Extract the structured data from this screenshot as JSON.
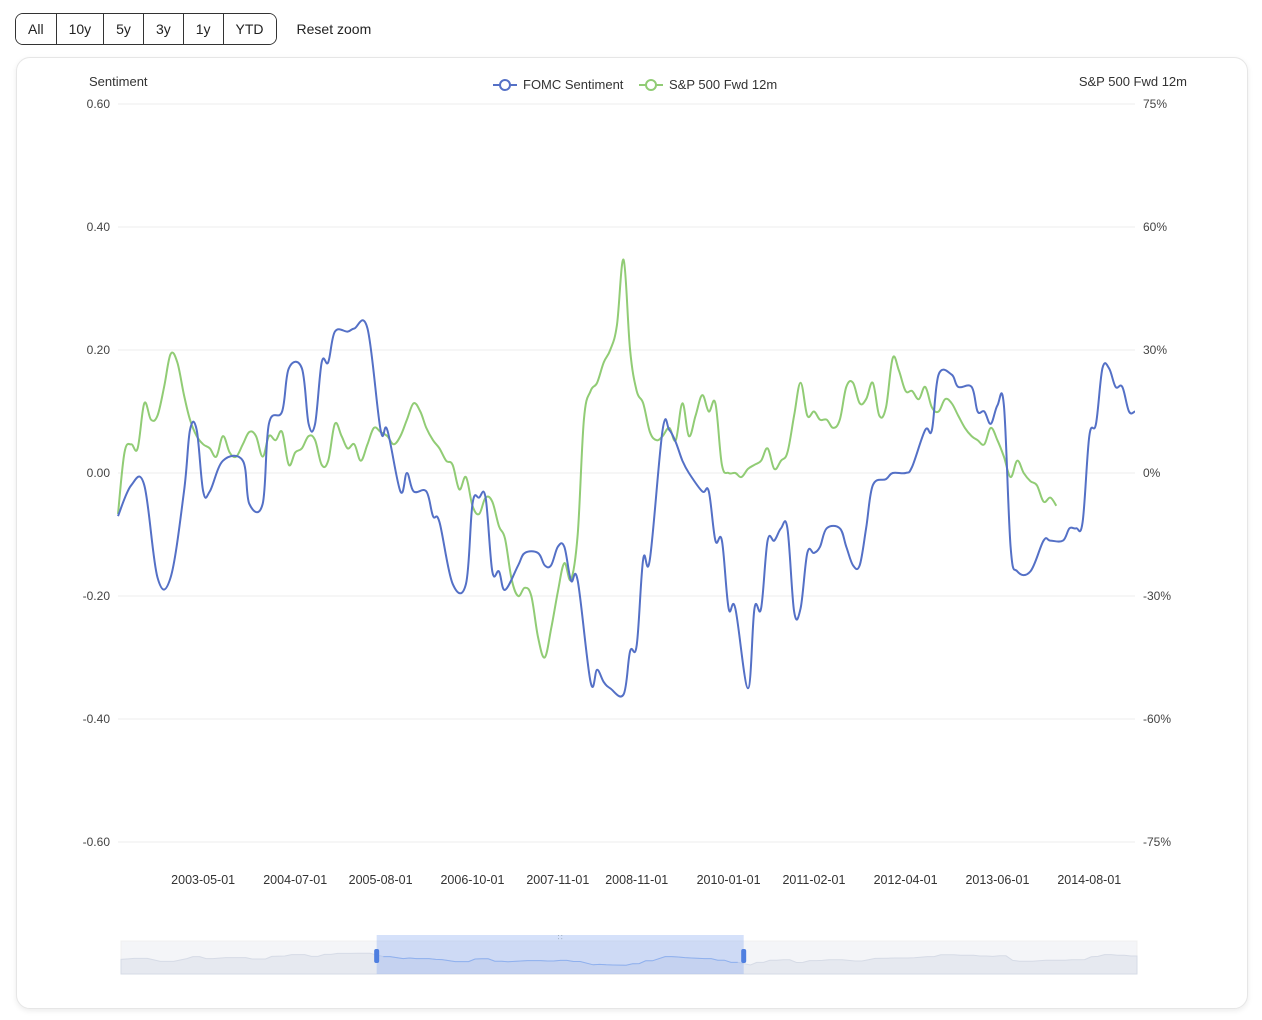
{
  "toolbar": {
    "ranges": [
      "All",
      "10y",
      "5y",
      "3y",
      "1y",
      "YTD"
    ],
    "reset_label": "Reset zoom"
  },
  "chart_data": {
    "type": "line",
    "left_axis": {
      "label": "Sentiment",
      "ticks": [
        "0.60",
        "0.40",
        "0.20",
        "0.00",
        "-0.20",
        "-0.40",
        "-0.60"
      ],
      "range": [
        -0.6,
        0.6
      ]
    },
    "right_axis": {
      "label": "S&P 500 Fwd 12m",
      "ticks": [
        "75%",
        "60%",
        "30%",
        "0%",
        "-30%",
        "-60%",
        "-75%"
      ]
    },
    "x_labels": [
      "2003-05-01",
      "2004-07-01",
      "2005-08-01",
      "2006-10-01",
      "2007-11-01",
      "2008-11-01",
      "2010-01-01",
      "2011-02-01",
      "2012-04-01",
      "2013-06-01",
      "2014-08-01"
    ],
    "x_range": [
      "2002-04-01",
      "2015-03-01"
    ],
    "series": [
      {
        "name": "FOMC Sentiment",
        "axis": "left",
        "color": "#5470c6",
        "points": [
          [
            "2002-04-01",
            -0.07
          ],
          [
            "2002-06-01",
            -0.02
          ],
          [
            "2002-08-01",
            -0.02
          ],
          [
            "2002-10-01",
            -0.17
          ],
          [
            "2002-12-01",
            -0.17
          ],
          [
            "2003-02-01",
            -0.03
          ],
          [
            "2003-03-01",
            0.07
          ],
          [
            "2003-04-01",
            0.07
          ],
          [
            "2003-05-01",
            -0.03
          ],
          [
            "2003-06-01",
            -0.03
          ],
          [
            "2003-08-01",
            0.02
          ],
          [
            "2003-11-01",
            0.02
          ],
          [
            "2003-12-01",
            -0.05
          ],
          [
            "2004-02-01",
            -0.05
          ],
          [
            "2004-03-01",
            0.08
          ],
          [
            "2004-05-01",
            0.1
          ],
          [
            "2004-06-01",
            0.17
          ],
          [
            "2004-08-01",
            0.17
          ],
          [
            "2004-09-01",
            0.08
          ],
          [
            "2004-10-01",
            0.08
          ],
          [
            "2004-11-01",
            0.18
          ],
          [
            "2004-12-01",
            0.18
          ],
          [
            "2005-01-01",
            0.23
          ],
          [
            "2005-03-01",
            0.23
          ],
          [
            "2005-04-01",
            0.235
          ],
          [
            "2005-06-01",
            0.235
          ],
          [
            "2005-08-01",
            0.07
          ],
          [
            "2005-09-01",
            0.07
          ],
          [
            "2005-11-01",
            -0.03
          ],
          [
            "2005-12-01",
            0.0
          ],
          [
            "2006-01-01",
            -0.03
          ],
          [
            "2006-03-01",
            -0.03
          ],
          [
            "2006-04-01",
            -0.07
          ],
          [
            "2006-05-01",
            -0.08
          ],
          [
            "2006-07-01",
            -0.18
          ],
          [
            "2006-09-01",
            -0.18
          ],
          [
            "2006-10-01",
            -0.05
          ],
          [
            "2006-11-01",
            -0.04
          ],
          [
            "2006-12-01",
            -0.04
          ],
          [
            "2007-01-01",
            -0.16
          ],
          [
            "2007-02-01",
            -0.16
          ],
          [
            "2007-03-01",
            -0.19
          ],
          [
            "2007-05-01",
            -0.15
          ],
          [
            "2007-06-01",
            -0.13
          ],
          [
            "2007-08-01",
            -0.13
          ],
          [
            "2007-09-01",
            -0.15
          ],
          [
            "2007-10-01",
            -0.15
          ],
          [
            "2007-11-01",
            -0.12
          ],
          [
            "2007-12-01",
            -0.12
          ],
          [
            "2008-01-01",
            -0.175
          ],
          [
            "2008-02-01",
            -0.175
          ],
          [
            "2008-04-01",
            -0.34
          ],
          [
            "2008-05-01",
            -0.32
          ],
          [
            "2008-06-01",
            -0.34
          ],
          [
            "2008-07-01",
            -0.35
          ],
          [
            "2008-09-01",
            -0.36
          ],
          [
            "2008-10-01",
            -0.29
          ],
          [
            "2008-11-01",
            -0.28
          ],
          [
            "2008-12-01",
            -0.14
          ],
          [
            "2009-01-01",
            -0.14
          ],
          [
            "2009-03-01",
            0.07
          ],
          [
            "2009-04-01",
            0.07
          ],
          [
            "2009-05-01",
            0.05
          ],
          [
            "2009-06-01",
            0.02
          ],
          [
            "2009-07-01",
            0.0
          ],
          [
            "2009-09-01",
            -0.03
          ],
          [
            "2009-10-01",
            -0.03
          ],
          [
            "2009-11-01",
            -0.11
          ],
          [
            "2009-12-01",
            -0.11
          ],
          [
            "2010-01-01",
            -0.22
          ],
          [
            "2010-02-01",
            -0.22
          ],
          [
            "2010-04-01",
            -0.35
          ],
          [
            "2010-05-01",
            -0.22
          ],
          [
            "2010-06-01",
            -0.22
          ],
          [
            "2010-07-01",
            -0.11
          ],
          [
            "2010-08-01",
            -0.11
          ],
          [
            "2010-09-01",
            -0.09
          ],
          [
            "2010-10-01",
            -0.09
          ],
          [
            "2010-11-01",
            -0.225
          ],
          [
            "2010-12-01",
            -0.22
          ],
          [
            "2011-01-01",
            -0.13
          ],
          [
            "2011-02-01",
            -0.13
          ],
          [
            "2011-03-01",
            -0.12
          ],
          [
            "2011-04-01",
            -0.09
          ],
          [
            "2011-06-01",
            -0.09
          ],
          [
            "2011-07-01",
            -0.12
          ],
          [
            "2011-08-01",
            -0.15
          ],
          [
            "2011-09-01",
            -0.15
          ],
          [
            "2011-10-01",
            -0.09
          ],
          [
            "2011-11-01",
            -0.02
          ],
          [
            "2012-01-01",
            -0.01
          ],
          [
            "2012-02-01",
            0.0
          ],
          [
            "2012-04-01",
            0.0
          ],
          [
            "2012-05-01",
            0.01
          ],
          [
            "2012-07-01",
            0.07
          ],
          [
            "2012-08-01",
            0.07
          ],
          [
            "2012-09-01",
            0.16
          ],
          [
            "2012-11-01",
            0.16
          ],
          [
            "2012-12-01",
            0.14
          ],
          [
            "2013-02-01",
            0.14
          ],
          [
            "2013-03-01",
            0.1
          ],
          [
            "2013-04-01",
            0.1
          ],
          [
            "2013-05-01",
            0.08
          ],
          [
            "2013-06-01",
            0.11
          ],
          [
            "2013-07-01",
            0.11
          ],
          [
            "2013-08-01",
            -0.12
          ],
          [
            "2013-09-01",
            -0.16
          ],
          [
            "2013-11-01",
            -0.16
          ],
          [
            "2014-01-01",
            -0.11
          ],
          [
            "2014-02-01",
            -0.11
          ],
          [
            "2014-04-01",
            -0.11
          ],
          [
            "2014-05-01",
            -0.09
          ],
          [
            "2014-06-01",
            -0.09
          ],
          [
            "2014-07-01",
            -0.08
          ],
          [
            "2014-08-01",
            0.06
          ],
          [
            "2014-09-01",
            0.08
          ],
          [
            "2014-10-01",
            0.17
          ],
          [
            "2014-11-01",
            0.17
          ],
          [
            "2014-12-01",
            0.14
          ],
          [
            "2015-01-01",
            0.14
          ],
          [
            "2015-02-01",
            0.1
          ],
          [
            "2015-03-01",
            0.1
          ]
        ]
      },
      {
        "name": "S&P 500 Fwd 12m",
        "axis": "right",
        "color": "#91cc75",
        "points": [
          [
            "2002-04-01",
            -0.1
          ],
          [
            "2002-05-01",
            0.05
          ],
          [
            "2002-06-01",
            0.07
          ],
          [
            "2002-07-01",
            0.06
          ],
          [
            "2002-08-01",
            0.17
          ],
          [
            "2002-09-01",
            0.13
          ],
          [
            "2002-10-01",
            0.14
          ],
          [
            "2002-11-01",
            0.21
          ],
          [
            "2002-12-01",
            0.29
          ],
          [
            "2003-01-01",
            0.27
          ],
          [
            "2003-02-01",
            0.19
          ],
          [
            "2003-03-01",
            0.13
          ],
          [
            "2003-04-01",
            0.09
          ],
          [
            "2003-05-01",
            0.07
          ],
          [
            "2003-06-01",
            0.06
          ],
          [
            "2003-07-01",
            0.04
          ],
          [
            "2003-08-01",
            0.09
          ],
          [
            "2003-09-01",
            0.05
          ],
          [
            "2003-10-01",
            0.04
          ],
          [
            "2003-11-01",
            0.07
          ],
          [
            "2003-12-01",
            0.1
          ],
          [
            "2004-01-01",
            0.09
          ],
          [
            "2004-02-01",
            0.04
          ],
          [
            "2004-03-01",
            0.09
          ],
          [
            "2004-04-01",
            0.08
          ],
          [
            "2004-05-01",
            0.1
          ],
          [
            "2004-06-01",
            0.02
          ],
          [
            "2004-07-01",
            0.05
          ],
          [
            "2004-08-01",
            0.06
          ],
          [
            "2004-09-01",
            0.09
          ],
          [
            "2004-10-01",
            0.08
          ],
          [
            "2004-11-01",
            0.02
          ],
          [
            "2004-12-01",
            0.03
          ],
          [
            "2005-01-01",
            0.12
          ],
          [
            "2005-02-01",
            0.09
          ],
          [
            "2005-03-01",
            0.06
          ],
          [
            "2005-04-01",
            0.07
          ],
          [
            "2005-05-01",
            0.03
          ],
          [
            "2005-06-01",
            0.07
          ],
          [
            "2005-07-01",
            0.11
          ],
          [
            "2005-08-01",
            0.1
          ],
          [
            "2005-09-01",
            0.09
          ],
          [
            "2005-10-01",
            0.07
          ],
          [
            "2005-11-01",
            0.09
          ],
          [
            "2005-12-01",
            0.13
          ],
          [
            "2006-01-01",
            0.17
          ],
          [
            "2006-02-01",
            0.15
          ],
          [
            "2006-03-01",
            0.11
          ],
          [
            "2006-04-01",
            0.08
          ],
          [
            "2006-05-01",
            0.06
          ],
          [
            "2006-06-01",
            0.03
          ],
          [
            "2006-07-01",
            0.02
          ],
          [
            "2006-08-01",
            -0.04
          ],
          [
            "2006-09-01",
            -0.01
          ],
          [
            "2006-10-01",
            -0.08
          ],
          [
            "2006-11-01",
            -0.1
          ],
          [
            "2006-12-01",
            -0.06
          ],
          [
            "2007-01-01",
            -0.07
          ],
          [
            "2007-02-01",
            -0.13
          ],
          [
            "2007-03-01",
            -0.16
          ],
          [
            "2007-04-01",
            -0.26
          ],
          [
            "2007-05-01",
            -0.3
          ],
          [
            "2007-06-01",
            -0.28
          ],
          [
            "2007-07-01",
            -0.3
          ],
          [
            "2007-08-01",
            -0.4
          ],
          [
            "2007-09-01",
            -0.45
          ],
          [
            "2007-10-01",
            -0.38
          ],
          [
            "2007-11-01",
            -0.29
          ],
          [
            "2007-12-01",
            -0.22
          ],
          [
            "2008-01-01",
            -0.26
          ],
          [
            "2008-02-01",
            -0.15
          ],
          [
            "2008-03-01",
            0.13
          ],
          [
            "2008-04-01",
            0.2
          ],
          [
            "2008-05-01",
            0.22
          ],
          [
            "2008-06-01",
            0.27
          ],
          [
            "2008-07-01",
            0.3
          ],
          [
            "2008-08-01",
            0.36
          ],
          [
            "2008-09-01",
            0.52
          ],
          [
            "2008-10-01",
            0.3
          ],
          [
            "2008-11-01",
            0.2
          ],
          [
            "2008-12-01",
            0.17
          ],
          [
            "2009-01-01",
            0.1
          ],
          [
            "2009-02-01",
            0.08
          ],
          [
            "2009-03-01",
            0.09
          ],
          [
            "2009-04-01",
            0.11
          ],
          [
            "2009-05-01",
            0.08
          ],
          [
            "2009-06-01",
            0.17
          ],
          [
            "2009-07-01",
            0.09
          ],
          [
            "2009-08-01",
            0.14
          ],
          [
            "2009-09-01",
            0.19
          ],
          [
            "2009-10-01",
            0.15
          ],
          [
            "2009-11-01",
            0.17
          ],
          [
            "2009-12-01",
            0.02
          ],
          [
            "2010-01-01",
            0.0
          ],
          [
            "2010-02-01",
            0.0
          ],
          [
            "2010-03-01",
            -0.01
          ],
          [
            "2010-04-01",
            0.01
          ],
          [
            "2010-05-01",
            0.02
          ],
          [
            "2010-06-01",
            0.03
          ],
          [
            "2010-07-01",
            0.06
          ],
          [
            "2010-08-01",
            0.01
          ],
          [
            "2010-09-01",
            0.03
          ],
          [
            "2010-10-01",
            0.05
          ],
          [
            "2010-11-01",
            0.14
          ],
          [
            "2010-12-01",
            0.22
          ],
          [
            "2011-01-01",
            0.14
          ],
          [
            "2011-02-01",
            0.15
          ],
          [
            "2011-03-01",
            0.13
          ],
          [
            "2011-04-01",
            0.13
          ],
          [
            "2011-05-01",
            0.11
          ],
          [
            "2011-06-01",
            0.13
          ],
          [
            "2011-07-01",
            0.21
          ],
          [
            "2011-08-01",
            0.22
          ],
          [
            "2011-09-01",
            0.17
          ],
          [
            "2011-10-01",
            0.18
          ],
          [
            "2011-11-01",
            0.22
          ],
          [
            "2011-12-01",
            0.14
          ],
          [
            "2012-01-01",
            0.16
          ],
          [
            "2012-02-01",
            0.28
          ],
          [
            "2012-03-01",
            0.25
          ],
          [
            "2012-04-01",
            0.2
          ],
          [
            "2012-05-01",
            0.2
          ],
          [
            "2012-06-01",
            0.18
          ],
          [
            "2012-07-01",
            0.21
          ],
          [
            "2012-08-01",
            0.16
          ],
          [
            "2012-09-01",
            0.15
          ],
          [
            "2012-10-01",
            0.18
          ],
          [
            "2012-11-01",
            0.17
          ],
          [
            "2012-12-01",
            0.14
          ],
          [
            "2013-01-01",
            0.11
          ],
          [
            "2013-02-01",
            0.09
          ],
          [
            "2013-03-01",
            0.08
          ],
          [
            "2013-04-01",
            0.07
          ],
          [
            "2013-05-01",
            0.11
          ],
          [
            "2013-06-01",
            0.08
          ],
          [
            "2013-07-01",
            0.04
          ],
          [
            "2013-08-01",
            -0.01
          ],
          [
            "2013-09-01",
            0.03
          ],
          [
            "2013-10-01",
            0.0
          ],
          [
            "2013-11-01",
            -0.02
          ],
          [
            "2013-12-01",
            -0.03
          ],
          [
            "2014-01-01",
            -0.07
          ],
          [
            "2014-02-01",
            -0.06
          ],
          [
            "2014-03-01",
            -0.08
          ]
        ]
      }
    ],
    "legend_position": "top-center",
    "grid": true
  },
  "zoom_slider": {
    "handles": "two",
    "selected_range": [
      "2005-07-01",
      "2010-03-01"
    ]
  }
}
